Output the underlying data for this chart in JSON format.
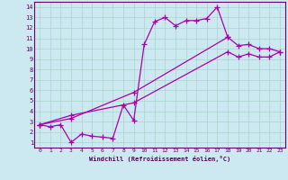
{
  "xlabel": "Windchill (Refroidissement éolien,°C)",
  "background_color": "#cce8f0",
  "grid_color": "#aad4cc",
  "line_color": "#aa00aa",
  "xlim": [
    -0.5,
    23.5
  ],
  "ylim": [
    0.5,
    14.5
  ],
  "xticks": [
    0,
    1,
    2,
    3,
    4,
    5,
    6,
    7,
    8,
    9,
    10,
    11,
    12,
    13,
    14,
    15,
    16,
    17,
    18,
    19,
    20,
    21,
    22,
    23
  ],
  "yticks": [
    1,
    2,
    3,
    4,
    5,
    6,
    7,
    8,
    9,
    10,
    11,
    12,
    13,
    14
  ],
  "curve1_x": [
    0,
    1,
    2,
    3,
    4,
    5,
    6,
    7,
    8,
    9,
    10,
    11,
    12,
    13,
    14,
    15,
    16,
    17,
    18
  ],
  "curve1_y": [
    2.7,
    2.5,
    2.7,
    1.0,
    1.8,
    1.6,
    1.5,
    1.4,
    4.6,
    3.1,
    10.4,
    12.6,
    13.0,
    12.2,
    12.7,
    12.7,
    12.9,
    14.0,
    11.1
  ],
  "curve2_x": [
    0,
    3,
    9,
    18,
    19,
    20,
    21,
    22,
    23
  ],
  "curve2_y": [
    2.7,
    3.3,
    5.8,
    11.1,
    10.3,
    10.4,
    10.0,
    10.0,
    9.7
  ],
  "curve3_x": [
    0,
    3,
    9,
    18,
    19,
    20,
    21,
    22,
    23
  ],
  "curve3_y": [
    2.7,
    3.6,
    4.8,
    9.7,
    9.2,
    9.5,
    9.2,
    9.2,
    9.7
  ]
}
